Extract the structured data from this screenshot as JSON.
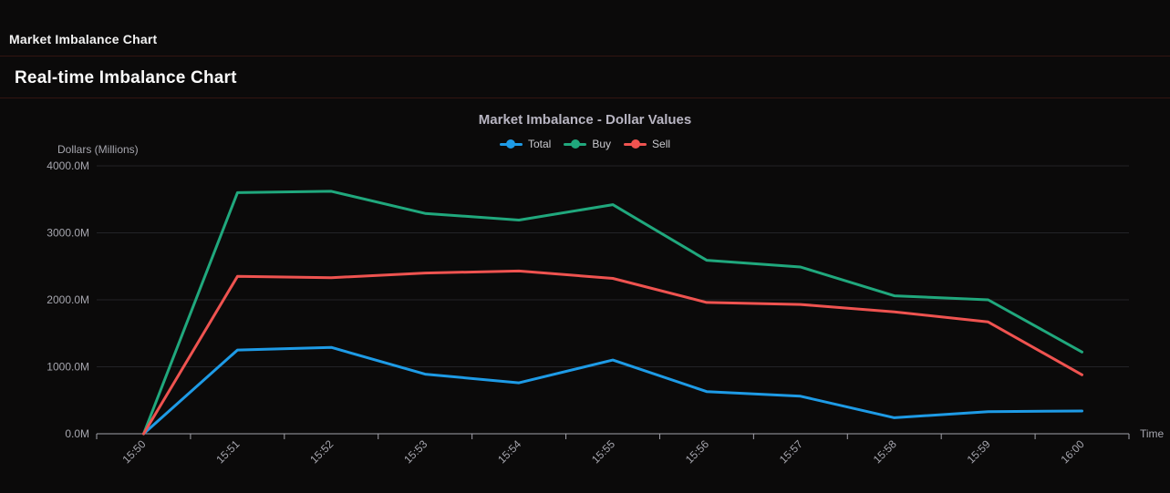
{
  "window": {
    "title": "Market Imbalance Chart"
  },
  "page": {
    "heading": "Real-time Imbalance Chart"
  },
  "chart_data": {
    "type": "line",
    "title": "Market Imbalance - Dollar Values",
    "xlabel": "Time",
    "ylabel": "Dollars (Millions)",
    "categories": [
      "15:50",
      "15:51",
      "15:52",
      "15:53",
      "15:54",
      "15:55",
      "15:56",
      "15:57",
      "15:58",
      "15:59",
      "16:00"
    ],
    "y_tick_labels": [
      "0.0M",
      "1000.0M",
      "2000.0M",
      "3000.0M",
      "4000.0M"
    ],
    "ylim": [
      0,
      4000
    ],
    "grid": true,
    "legend_position": "top",
    "series": [
      {
        "name": "Total",
        "color": "#1e9be6",
        "values": [
          0,
          1250,
          1290,
          890,
          760,
          1100,
          630,
          560,
          240,
          330,
          340
        ]
      },
      {
        "name": "Buy",
        "color": "#20a87d",
        "values": [
          0,
          3600,
          3620,
          3290,
          3190,
          3420,
          2590,
          2490,
          2060,
          2000,
          1220
        ]
      },
      {
        "name": "Sell",
        "color": "#ef5350",
        "values": [
          0,
          2350,
          2330,
          2400,
          2430,
          2320,
          1960,
          1930,
          1820,
          1670,
          880
        ]
      }
    ]
  },
  "colors": {
    "background": "#0b0a0a",
    "divider": "#321511",
    "axis_line": "#a2a2aa",
    "gridline": "#232327",
    "axis_text": "#a6a6ae",
    "title_text": "#b8b5c2"
  }
}
